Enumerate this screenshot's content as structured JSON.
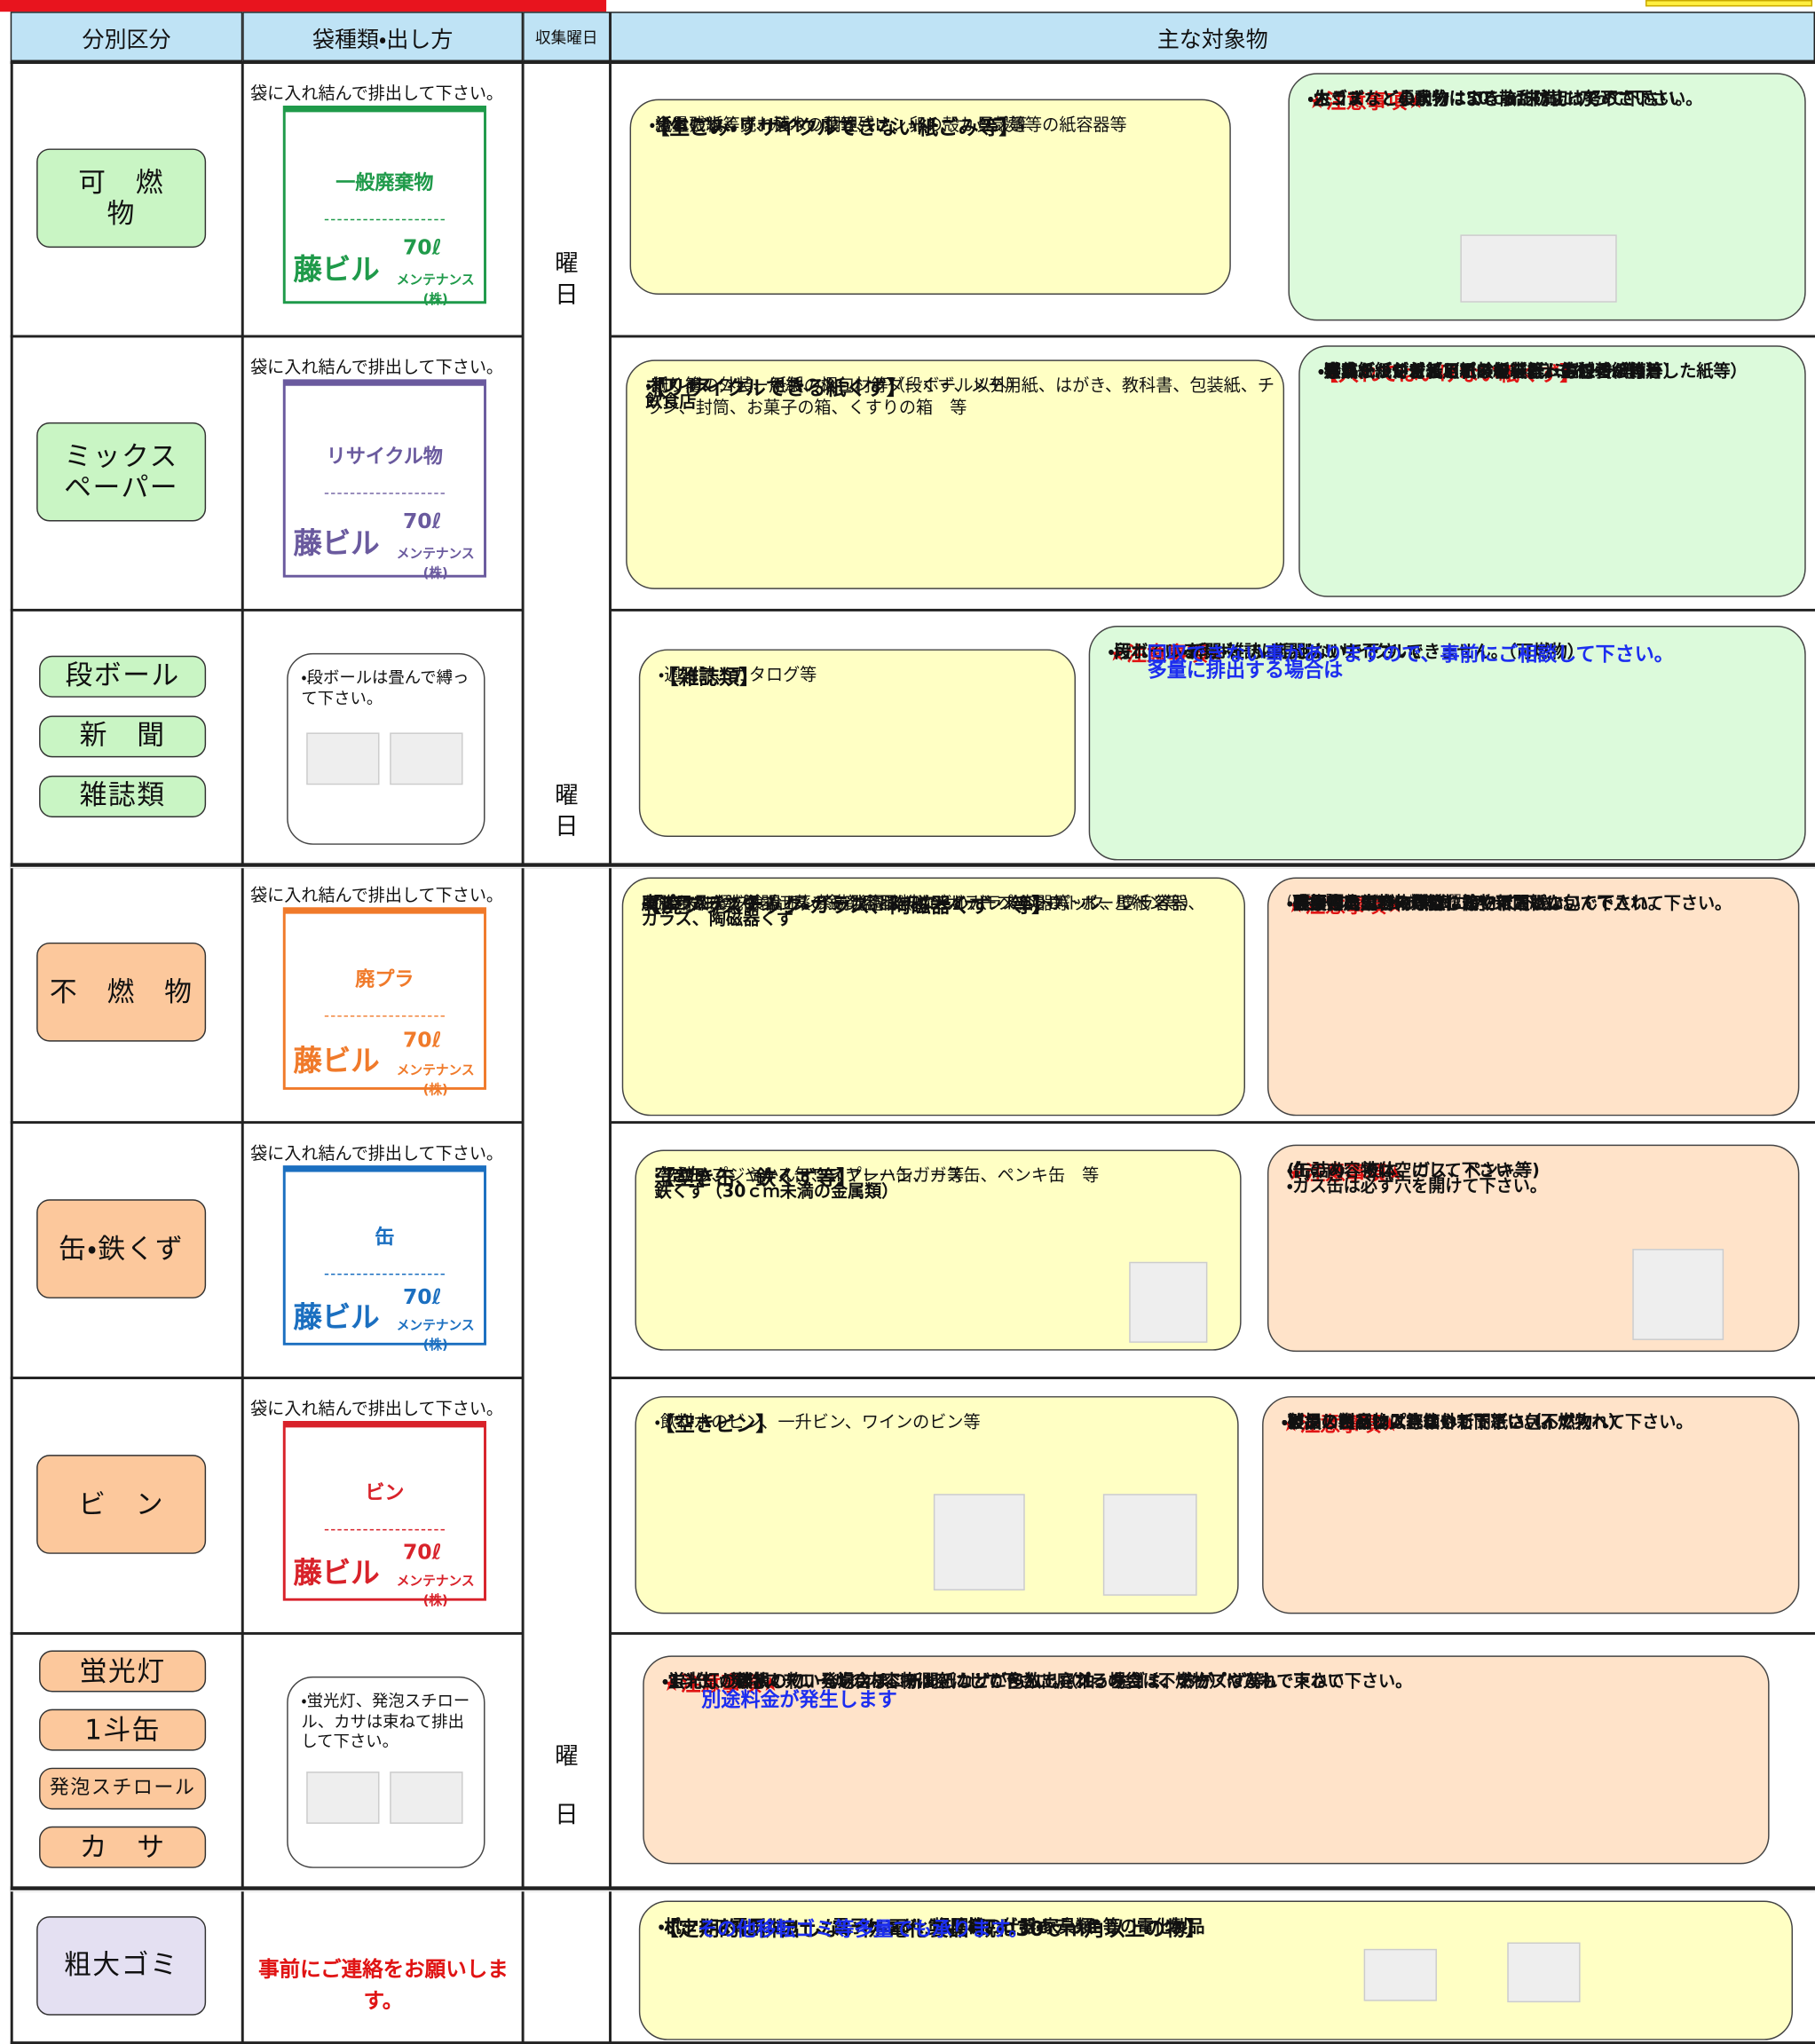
{
  "header": {
    "columns": [
      "分別区分",
      "袋種類・出し方",
      "収集曜日",
      "主な対象物"
    ]
  },
  "day_marks": [
    [
      "曜",
      "日"
    ],
    [
      "曜",
      "日"
    ],
    [
      "曜",
      "日"
    ]
  ],
  "rows": [
    {
      "categories": [
        "可　燃\n物"
      ],
      "bag_note": "袋に入れ結んで排出して下さい。",
      "bag": {
        "label": "一般廃棄物",
        "brand": "藤ビル",
        "size": "70ℓ",
        "company": "メンテナンス(株)"
      },
      "boxes": [
        {
          "title": "【生ごみ・リサイクルできない紙ごみ等】",
          "lines": [
            "・汚れた紙くず、ティッシュ、レシート、カップ麺等の紙容器等",
            "・食べ残し、売れ残り、調理残さ、卵の殻、貝殻等",
            "・紙おむつ等",
            "・少量の木くず、植木の葉等"
          ]
        },
        {
          "title": "★注意事項★",
          "lines": [
            "・生ゴミなどの水分はできるだけ切って下さい。",
            "・木くずなど長尺物は50ｃｍ未満に切って下さい。",
            "・カラスなど小動物による散乱防止に努めて下さい。"
          ]
        }
      ]
    },
    {
      "categories": [
        "ミックス\nペーパー"
      ],
      "bag_note": "袋に入れ結んで排出して下さい。",
      "bag": {
        "label": "リサイクル物",
        "brand": "藤ビル",
        "size": "70ℓ",
        "company": "メンテナンス(株)"
      },
      "boxes": [
        {
          "title": "【リサイクルできる紙くず】",
          "lines": [
            "オフィス",
            "・紙くず、コピー用紙、シュレッダーくず、メモ用紙、はがき、教科書、包装紙、チラシ、封筒、お菓子の箱、くすりの箱　等",
            "飲食店",
            "・割り箸の外装、紙製の梱包材等（段ボール以外）"
          ]
        },
        {
          "title": "【入れてはいけない紙くず】",
          "lines": [
            "・汚れた紙くず（アイスの容器、生ゴミが付着した紙等）",
            "・ビニールが付着している紙(ラミネート等)",
            "・アルミが付着している紙（ガムの包装紙等）",
            "・臭いがついた紙（石鹸包装紙、お線香の箱等）",
            "・写真",
            "・感熱紙（ＦＡＸ用紙、レシート等）",
            "・合成紙（シール、ポスター等）"
          ]
        }
      ]
    },
    {
      "categories": [
        "段ボール",
        "新　聞",
        "雑誌類"
      ],
      "bag_note": "・段ボールは畳んで縛って下さい。",
      "boxes": [
        {
          "title": "【雑誌類】",
          "lines": [
            "・週刊誌、カタログ等"
          ]
        },
        {
          "title": "★注意事項★",
          "lines": [
            "・段ボール・新聞・雑誌は混ぜないで下さい。",
            "・汚れている段ボール・新聞はリサイクルできません。（可燃物）",
            "多量に排出する場合は",
            "回収できない事がありますので、事前にご相談して下さい。"
          ]
        }
      ]
    },
    {
      "categories": [
        "不　燃　物"
      ],
      "bag_note": "袋に入れ結んで排出して下さい。",
      "bag": {
        "label": "廃プラ",
        "brand": "藤ビル",
        "size": "70ℓ",
        "company": "メンテナンス(株)"
      },
      "boxes": [
        {
          "title": "【廃プラスチック・ガラス、陶磁器くず　等】",
          "lines": [
            "廃プラスチック",
            "・ビニール類、食品トレイ、発泡スチロール、レトルトパック、プラ容器、",
            "事務用品などのプラスチック用品（ビデオテープ、ＣＤ、ボールペン等）",
            "おもちゃ、洗面器、薬の錠剤容器、ハンガー、ペットボトル、壁紙 等",
            "ガラス、陶磁器くず",
            "・ガラスコップ、お皿、茶碗、調味料などのガラス容器等"
          ]
        },
        {
          "title": "★注意事項★",
          "lines": [
            "・残飯等の生ごみは取り除いて下さい。",
            "・容器内の内容物は空にして下さい。",
            "・破損したガラス等は、箱や新聞紙に包んで入れて下さい。",
            "・長尺物は50ｃｍ未満に切って下さい。",
            "（ホース、ロープ等）",
            "・医療系廃棄物に類似した物は入れないで下さい。",
            "(下記「回収できない物」参照"
          ]
        }
      ]
    },
    {
      "categories": [
        "缶・鉄くず"
      ],
      "bag_note": "袋に入れ結んで排出して下さい。",
      "bag": {
        "label": "缶",
        "brand": "藤ビル",
        "size": "70ℓ",
        "company": "メンテナンス(株)"
      },
      "boxes": [
        {
          "title": "【空き缶、鉄くず等】",
          "lines": [
            "空き缶",
            "・缶詰め、ジュース缶、スプレー缶、ガス缶、ペンキ缶　等",
            "鉄くず（30ｃｍ未満の金属類）",
            "・クリップ、やかん、ワイヤーハンガー等"
          ]
        },
        {
          "title": "★注意事項★",
          "lines": [
            "・缶の内容物は空にして下さい。",
            "(缶詰め、液体、ガス、ペンキ等)",
            "・ガス缶は必ず穴を開けて下さい。"
          ]
        }
      ]
    },
    {
      "categories": [
        "ビ　ン"
      ],
      "bag_note": "袋に入れ結んで排出して下さい。",
      "bag": {
        "label": "ビン",
        "brand": "藤ビル",
        "size": "70ℓ",
        "company": "メンテナンス(株)"
      },
      "boxes": [
        {
          "title": "【空きビン】",
          "lines": [
            "・飲料水のビン、一升ビン、ワインのビン等"
          ]
        },
        {
          "title": "★注意事項★",
          "lines": [
            "・ビンのキャップ等は外して下さい。",
            "・ビンの内容物は空にして下さい。",
            "・破損したビンは、箱や新聞紙に包んで入れて下さい。",
            "・製品のビンは入れないで下さい（不燃物へ）",
            "・ガラス製品は入れないで下さい（不燃物へ）"
          ]
        }
      ]
    },
    {
      "categories": [
        "蛍光灯",
        "1斗缶",
        "発泡スチロール",
        "カ　サ"
      ],
      "bag_note": "・蛍光灯、発泡スチロール、カサは束ねて排出して下さい。",
      "boxes": [
        {
          "title": "★注意事項★",
          "lines": [
            "・1斗缶、発泡スチロールの内容物は空にして下さい。（油、生ゴミ、おがくず等）",
            "・蛍光灯の棒状の物、発泡スチロール、カサが多数出される場合は、テープやひもで束ねて下さい。",
            "・蛍光灯が破損している場合は、新聞紙などに包んで廃プラの袋（不燃物）に入れて下さい",
            "別途料金が発生します"
          ]
        }
      ]
    },
    {
      "categories": [
        "粗大ゴミ"
      ],
      "bag_note": "事前にご連絡をお願いします。",
      "boxes": [
        {
          "title": "【定期的に排出しない物・電化製品・概ね30ｃｍ角以上の物】",
          "lines": [
            "・ポット、電子ジャー、電子レンジ、掃除機、ビデオデッキ等の電化製品",
            "・机、イス、ロッカー、カーペット、布団等の什器・家具類",
            "その他移転ゴミ等多量でも承ります。"
          ]
        }
      ]
    }
  ]
}
